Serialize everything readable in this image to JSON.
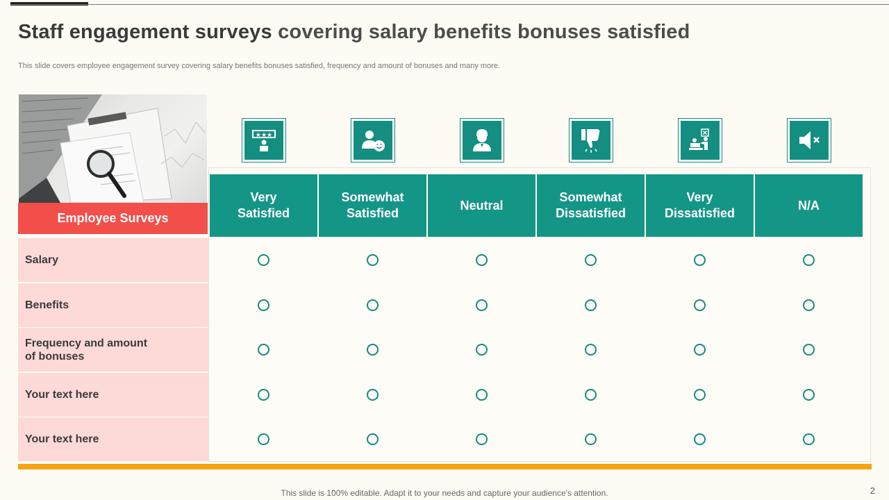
{
  "slide": {
    "title_bold": "Staff engagement surveys",
    "title_rest": "covering salary benefits bonuses satisfied",
    "subtitle": "This slide covers employee engagement survey covering salary benefits bonuses satisfied, frequency and amount of bonuses and many more.",
    "footer": "This slide is 100% editable. Adapt it to your needs and capture your audience's attention.",
    "page_number": "2"
  },
  "colors": {
    "teal": "#149687",
    "red": "#f24f4b",
    "pink": "#fdd9d8",
    "orange": "#f6a312",
    "background": "#fdfbf4"
  },
  "table": {
    "header_label": "Employee Surveys",
    "columns": [
      {
        "label_line1": "Very",
        "label_line2": "Satisfied",
        "icon": "rating-stars-icon"
      },
      {
        "label_line1": "Somewhat",
        "label_line2": "Satisfied",
        "icon": "user-smile-icon"
      },
      {
        "label_line1": "Neutral",
        "label_line2": "",
        "icon": "person-neutral-icon"
      },
      {
        "label_line1": "Somewhat",
        "label_line2": "Dissatisfied",
        "icon": "thumbs-down-icon"
      },
      {
        "label_line1": "Very",
        "label_line2": "Dissatisfied",
        "icon": "presentation-reject-icon"
      },
      {
        "label_line1": "N/A",
        "label_line2": "",
        "icon": "speaker-mute-icon"
      }
    ],
    "rows": [
      {
        "label": "Salary"
      },
      {
        "label": "Benefits"
      },
      {
        "label": "Frequency and amount of bonuses"
      },
      {
        "label": "Your text here"
      },
      {
        "label": "Your text here"
      }
    ]
  }
}
